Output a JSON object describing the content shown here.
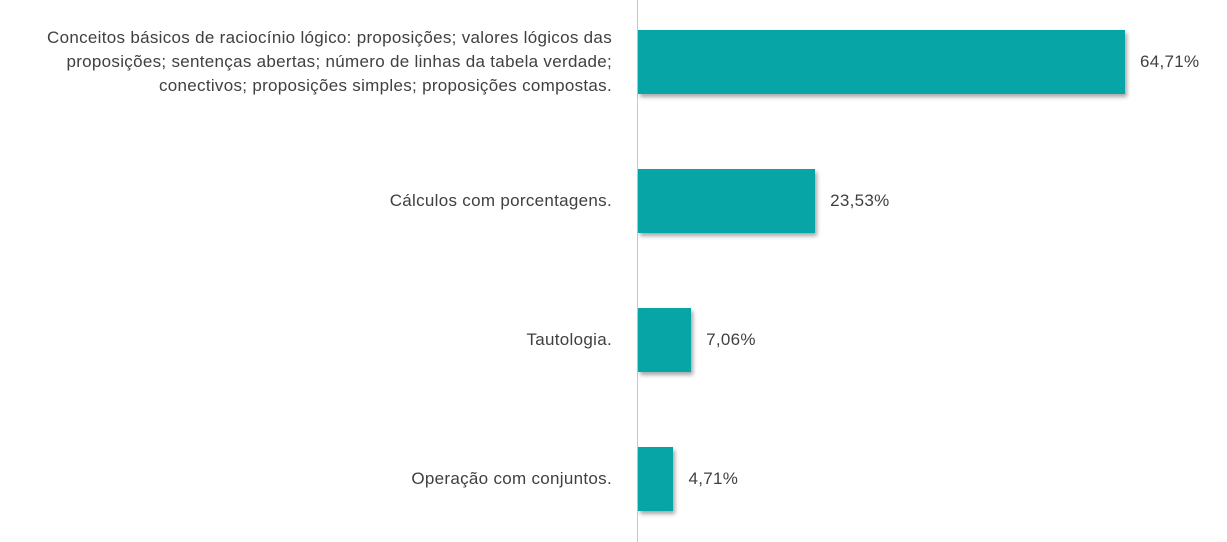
{
  "chart_data": {
    "type": "bar",
    "orientation": "horizontal",
    "categories": [
      "Conceitos básicos de raciocínio lógico: proposições; valores lógicos das proposições; sentenças abertas; número de linhas da tabela verdade; conectivos; proposições simples; proposições compostas.",
      "Cálculos com porcentagens.",
      "Tautologia.",
      "Operação com conjuntos."
    ],
    "values": [
      64.71,
      23.53,
      7.06,
      4.71
    ],
    "value_labels": [
      "64,71%",
      "23,53%",
      "7,06%",
      "4,71%"
    ],
    "color": "#07a5a5"
  }
}
